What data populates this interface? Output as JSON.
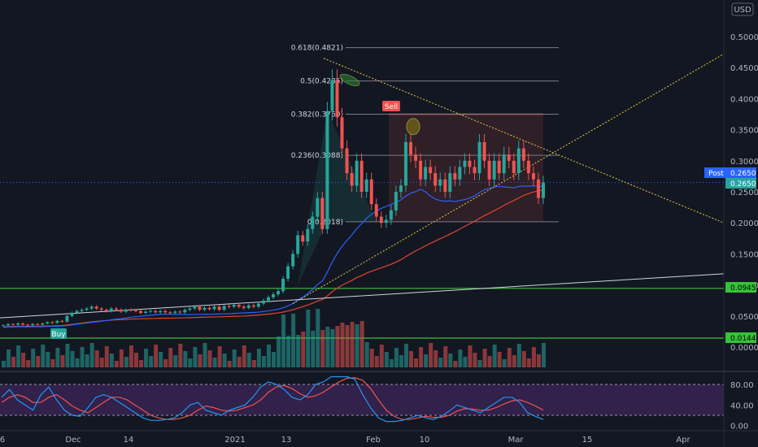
{
  "currency_button": "USD",
  "price_axis": {
    "ticks": [
      "0.5000",
      "0.4500",
      "0.4000",
      "0.3500",
      "0.3000",
      "0.2500",
      "0.2000",
      "0.1500",
      "0.1000",
      "0.0500",
      "0.0000"
    ],
    "post_label": "Post",
    "post_value": "0.2650",
    "last_value": "0.2650",
    "hline_upper_value": "0.0945",
    "hline_lower_value": "0.0144"
  },
  "oscillator_axis": {
    "ticks": [
      "80.00",
      "40.00",
      "0.00"
    ]
  },
  "time_axis": {
    "labels": [
      "6",
      "Dec",
      "14",
      "2021",
      "13",
      "Feb",
      "10",
      "Mar",
      "15",
      "Apr"
    ]
  },
  "fib_levels": [
    {
      "label": "0.618(0.4821)",
      "value": 0.4821
    },
    {
      "label": "0.5(0.4285)",
      "value": 0.4285
    },
    {
      "label": "0.382(0.3750)",
      "value": 0.375
    },
    {
      "label": "0.236(0.3088)",
      "value": 0.3088
    },
    {
      "label": "0(0.2018)",
      "value": 0.2018
    }
  ],
  "signals": {
    "buy": "Buy",
    "sell": "Sell"
  },
  "colors": {
    "background": "#131722",
    "up": "#26a69a",
    "down": "#ef5350",
    "ma_blue": "#2962ff",
    "ma_red": "#e0452f",
    "ma_green": "#8bc34a",
    "trend_yellow": "#e6c84a",
    "hline_green": "#36c436",
    "osc_band": "#4a2a6e"
  },
  "chart_data": {
    "type": "candlestick",
    "y_range": [
      0,
      0.52
    ],
    "closes": [
      0.035,
      0.037,
      0.036,
      0.038,
      0.036,
      0.035,
      0.037,
      0.036,
      0.038,
      0.04,
      0.039,
      0.042,
      0.041,
      0.05,
      0.055,
      0.058,
      0.06,
      0.062,
      0.065,
      0.062,
      0.06,
      0.058,
      0.062,
      0.06,
      0.057,
      0.06,
      0.059,
      0.058,
      0.055,
      0.057,
      0.058,
      0.056,
      0.058,
      0.056,
      0.055,
      0.057,
      0.056,
      0.06,
      0.062,
      0.065,
      0.06,
      0.063,
      0.061,
      0.065,
      0.06,
      0.066,
      0.065,
      0.068,
      0.065,
      0.063,
      0.067,
      0.065,
      0.07,
      0.075,
      0.08,
      0.085,
      0.09,
      0.11,
      0.13,
      0.15,
      0.18,
      0.17,
      0.19,
      0.21,
      0.24,
      0.19,
      0.38,
      0.43,
      0.37,
      0.32,
      0.28,
      0.26,
      0.3,
      0.25,
      0.27,
      0.23,
      0.21,
      0.2,
      0.205,
      0.22,
      0.25,
      0.26,
      0.33,
      0.31,
      0.3,
      0.27,
      0.29,
      0.28,
      0.26,
      0.27,
      0.25,
      0.28,
      0.27,
      0.29,
      0.3,
      0.29,
      0.28,
      0.33,
      0.3,
      0.27,
      0.3,
      0.28,
      0.31,
      0.3,
      0.28,
      0.32,
      0.3,
      0.28,
      0.27,
      0.24,
      0.265
    ],
    "oscillator_range": [
      0,
      100
    ],
    "oscillator_k": [
      55,
      70,
      50,
      40,
      30,
      60,
      75,
      50,
      30,
      20,
      18,
      35,
      55,
      60,
      55,
      45,
      35,
      25,
      15,
      10,
      10,
      12,
      15,
      25,
      40,
      45,
      30,
      25,
      20,
      30,
      35,
      40,
      55,
      75,
      85,
      80,
      70,
      55,
      50,
      60,
      80,
      85,
      95,
      95,
      95,
      90,
      60,
      35,
      15,
      8,
      8,
      10,
      15,
      20,
      15,
      12,
      18,
      28,
      40,
      35,
      30,
      25,
      35,
      45,
      55,
      55,
      45,
      25,
      18,
      12
    ],
    "oscillator_d": [
      45,
      55,
      60,
      55,
      45,
      45,
      55,
      60,
      50,
      38,
      30,
      25,
      35,
      45,
      55,
      55,
      50,
      40,
      30,
      20,
      15,
      12,
      12,
      15,
      20,
      30,
      38,
      35,
      30,
      28,
      30,
      35,
      40,
      50,
      65,
      75,
      78,
      72,
      62,
      55,
      58,
      65,
      75,
      85,
      92,
      93,
      88,
      72,
      50,
      30,
      18,
      12,
      12,
      15,
      18,
      16,
      16,
      20,
      28,
      33,
      32,
      30,
      30,
      35,
      42,
      48,
      50,
      45,
      38,
      30
    ]
  }
}
